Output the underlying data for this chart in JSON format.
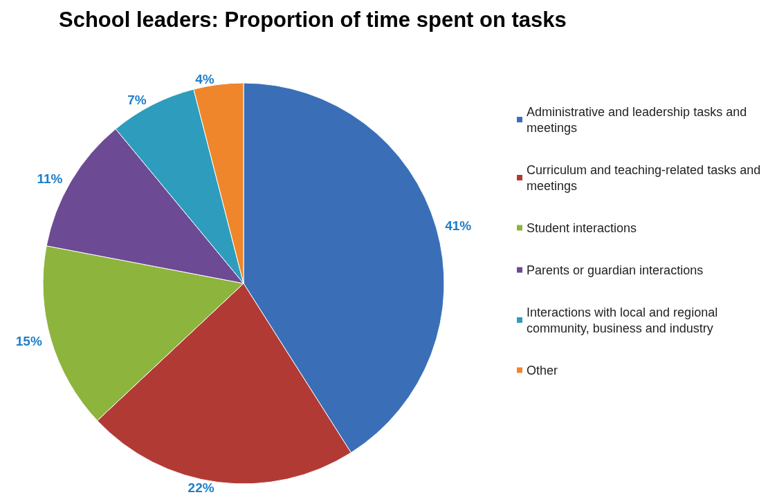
{
  "chart_data": {
    "type": "pie",
    "title": "School leaders: Proportion of time spent on tasks",
    "categories": [
      "Administrative and leadership tasks and meetings",
      "Curriculum and teaching-related tasks and meetings",
      "Student interactions",
      "Parents or guardian interactions",
      "Interactions with local and regional community, business and industry",
      "Other"
    ],
    "values": [
      41,
      22,
      15,
      11,
      7,
      4
    ],
    "colors": [
      "#3a6fb8",
      "#b23a35",
      "#8db43d",
      "#6c4a94",
      "#2e9dbd",
      "#ef862b"
    ],
    "value_labels": [
      "41%",
      "22%",
      "15%",
      "11%",
      "7%",
      "4%"
    ],
    "legend": "right"
  }
}
